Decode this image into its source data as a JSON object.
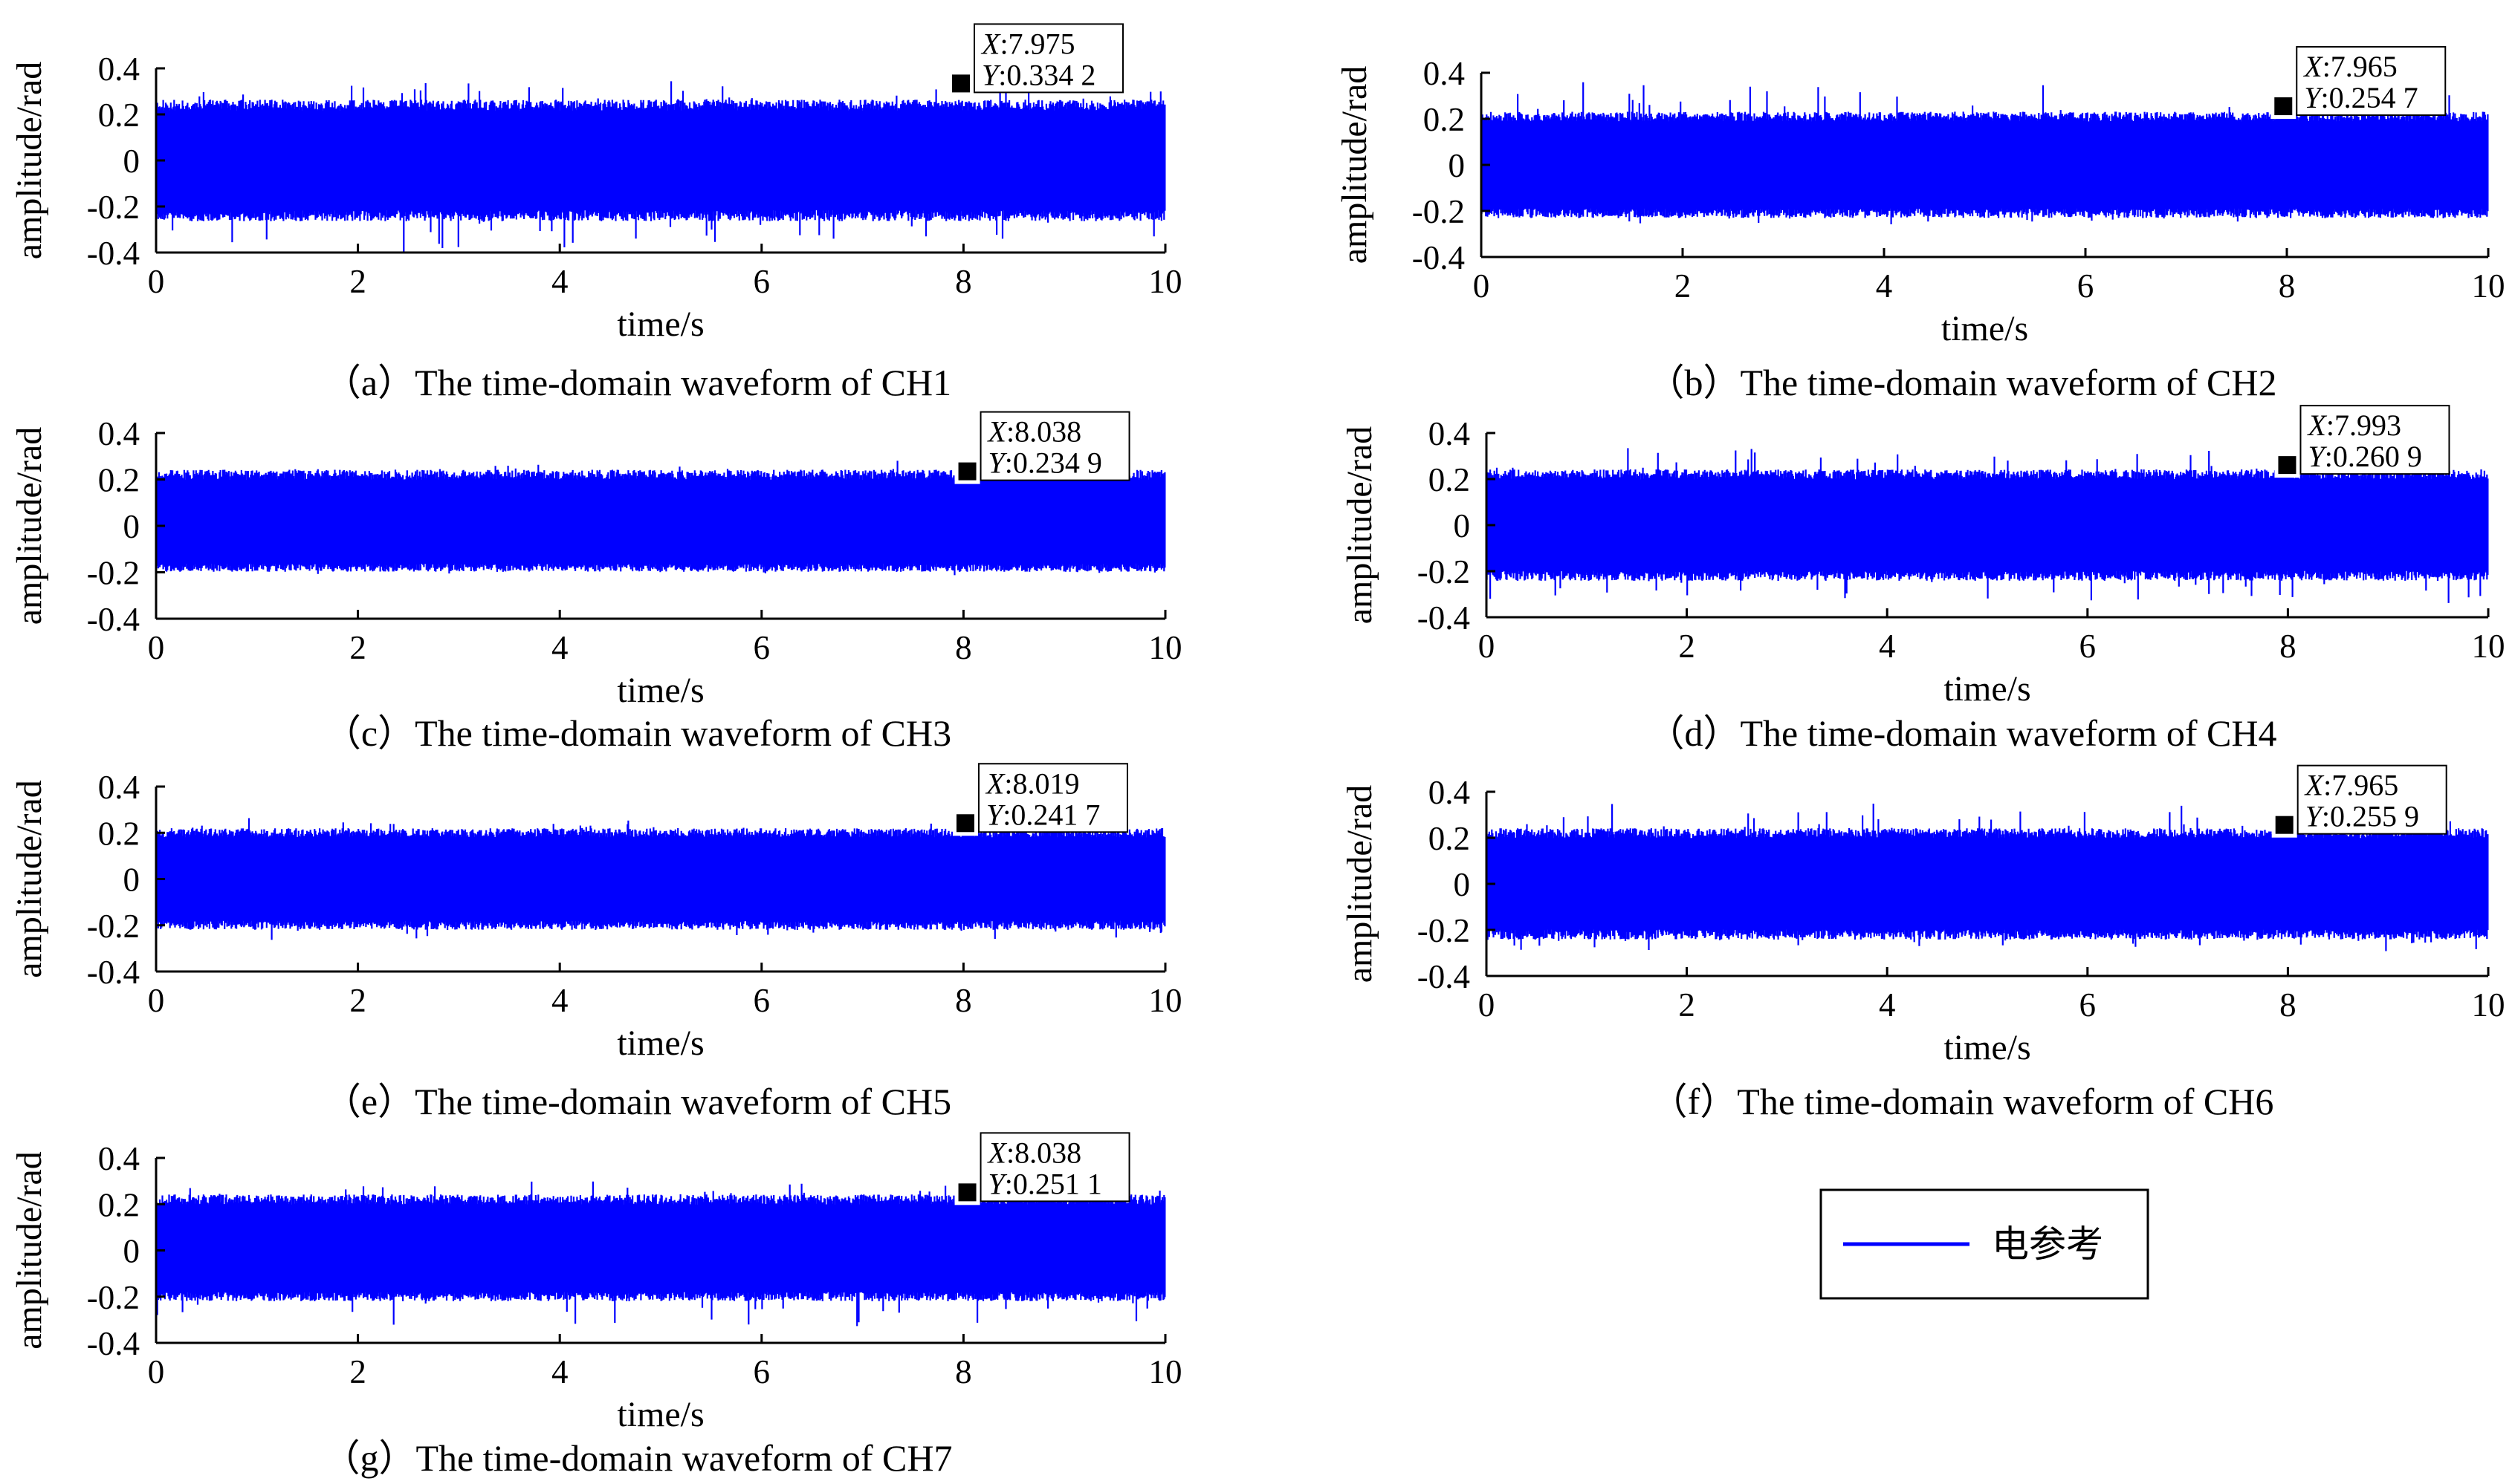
{
  "legend": {
    "label": "电参考",
    "color": "#0000ff"
  },
  "chart_data": [
    {
      "type": "line",
      "caption": "（a）The time-domain waveform of  CH1",
      "xlabel": "time/s",
      "ylabel": "amplitude/rad",
      "xlim": [
        0,
        10
      ],
      "ylim": [
        -0.4,
        0.4
      ],
      "xticks": [
        "0",
        "2",
        "4",
        "6",
        "8",
        "10"
      ],
      "yticks": [
        "0.4",
        "0.2",
        "0",
        "-0.2",
        "-0.4"
      ],
      "series": [
        {
          "name": "电参考",
          "color": "#0000ff",
          "x_range": [
            0,
            10
          ],
          "envelope_upper": 0.24,
          "envelope_lower": -0.24,
          "peak_max": 0.334,
          "peak_min": -0.4
        }
      ],
      "datatip": {
        "x": 7.975,
        "y": 0.3342,
        "x_label": "X",
        "x_text": ":7.975",
        "y_label": "Y",
        "y_text": ":0.334 2"
      }
    },
    {
      "type": "line",
      "caption": "（b）The time-domain waveform of  CH2",
      "xlabel": "time/s",
      "ylabel": "amplitude/rad",
      "xlim": [
        0,
        10
      ],
      "ylim": [
        -0.4,
        0.4
      ],
      "xticks": [
        "0",
        "2",
        "4",
        "6",
        "8",
        "10"
      ],
      "yticks": [
        "0.4",
        "0.2",
        "0",
        "-0.2",
        "-0.4"
      ],
      "series": [
        {
          "name": "电参考",
          "color": "#0000ff",
          "x_range": [
            0,
            10
          ],
          "envelope_upper": 0.21,
          "envelope_lower": -0.21,
          "peak_max": 0.36,
          "peak_min": -0.24
        }
      ],
      "datatip": {
        "x": 7.965,
        "y": 0.2547,
        "x_label": "X",
        "x_text": ":7.965",
        "y_label": "Y",
        "y_text": ":0.254 7"
      }
    },
    {
      "type": "line",
      "caption": "（c）The time-domain waveform of  CH3",
      "xlabel": "time/s",
      "ylabel": "amplitude/rad",
      "xlim": [
        0,
        10
      ],
      "ylim": [
        -0.4,
        0.4
      ],
      "xticks": [
        "0",
        "2",
        "4",
        "6",
        "8",
        "10"
      ],
      "yticks": [
        "0.4",
        "0.2",
        "0",
        "-0.2",
        "-0.4"
      ],
      "series": [
        {
          "name": "电参考",
          "color": "#0000ff",
          "x_range": [
            0,
            10
          ],
          "envelope_upper": 0.22,
          "envelope_lower": -0.18,
          "peak_max": 0.26,
          "peak_min": -0.2
        }
      ],
      "datatip": {
        "x": 8.038,
        "y": 0.2349,
        "x_label": "X",
        "x_text": ":8.038",
        "y_label": "Y",
        "y_text": ":0.234 9"
      }
    },
    {
      "type": "line",
      "caption": "（d）The time-domain waveform of  CH4",
      "xlabel": "time/s",
      "ylabel": "amplitude/rad",
      "xlim": [
        0,
        10
      ],
      "ylim": [
        -0.4,
        0.4
      ],
      "xticks": [
        "0",
        "2",
        "4",
        "6",
        "8",
        "10"
      ],
      "yticks": [
        "0.4",
        "0.2",
        "0",
        "-0.2",
        "-0.4"
      ],
      "series": [
        {
          "name": "电参考",
          "color": "#0000ff",
          "x_range": [
            0,
            10
          ],
          "envelope_upper": 0.22,
          "envelope_lower": -0.22,
          "peak_max": 0.34,
          "peak_min": -0.33
        }
      ],
      "datatip": {
        "x": 7.993,
        "y": 0.2609,
        "x_label": "X",
        "x_text": ":7.993",
        "y_label": "Y",
        "y_text": ":0.260 9"
      }
    },
    {
      "type": "line",
      "caption": "（e）The time-domain waveform of  CH5",
      "xlabel": "time/s",
      "ylabel": "amplitude/rad",
      "xlim": [
        0,
        10
      ],
      "ylim": [
        -0.4,
        0.4
      ],
      "xticks": [
        "0",
        "2",
        "4",
        "6",
        "8",
        "10"
      ],
      "yticks": [
        "0.4",
        "0.2",
        "0",
        "-0.2",
        "-0.4"
      ],
      "series": [
        {
          "name": "电参考",
          "color": "#0000ff",
          "x_range": [
            0,
            10
          ],
          "envelope_upper": 0.2,
          "envelope_lower": -0.2,
          "peak_max": 0.25,
          "peak_min": -0.25
        }
      ],
      "datatip": {
        "x": 8.019,
        "y": 0.2417,
        "x_label": "X",
        "x_text": ":8.019",
        "y_label": "Y",
        "y_text": ":0.241 7"
      }
    },
    {
      "type": "line",
      "caption": "（f）The time-domain waveform of  CH6",
      "xlabel": "time/s",
      "ylabel": "amplitude/rad",
      "xlim": [
        0,
        10
      ],
      "ylim": [
        -0.4,
        0.4
      ],
      "xticks": [
        "0",
        "2",
        "4",
        "6",
        "8",
        "10"
      ],
      "yticks": [
        "0.4",
        "0.2",
        "0",
        "-0.2",
        "-0.4"
      ],
      "series": [
        {
          "name": "电参考",
          "color": "#0000ff",
          "x_range": [
            0,
            10
          ],
          "envelope_upper": 0.22,
          "envelope_lower": -0.22,
          "peak_max": 0.33,
          "peak_min": -0.28
        }
      ],
      "datatip": {
        "x": 7.965,
        "y": 0.2559,
        "x_label": "X",
        "x_text": ":7.965",
        "y_label": "Y",
        "y_text": ":0.255 9"
      }
    },
    {
      "type": "line",
      "caption": "（g）The time-domain waveform of  CH7",
      "xlabel": "time/s",
      "ylabel": "amplitude/rad",
      "xlim": [
        0,
        10
      ],
      "ylim": [
        -0.4,
        0.4
      ],
      "xticks": [
        "0",
        "2",
        "4",
        "6",
        "8",
        "10"
      ],
      "yticks": [
        "0.4",
        "0.2",
        "0",
        "-0.2",
        "-0.4"
      ],
      "series": [
        {
          "name": "电参考",
          "color": "#0000ff",
          "x_range": [
            0,
            10
          ],
          "envelope_upper": 0.22,
          "envelope_lower": -0.2,
          "peak_max": 0.28,
          "peak_min": -0.32
        }
      ],
      "datatip": {
        "x": 8.038,
        "y": 0.2511,
        "x_label": "X",
        "x_text": ":8.038",
        "y_label": "Y",
        "y_text": ":0.251 1"
      }
    }
  ]
}
